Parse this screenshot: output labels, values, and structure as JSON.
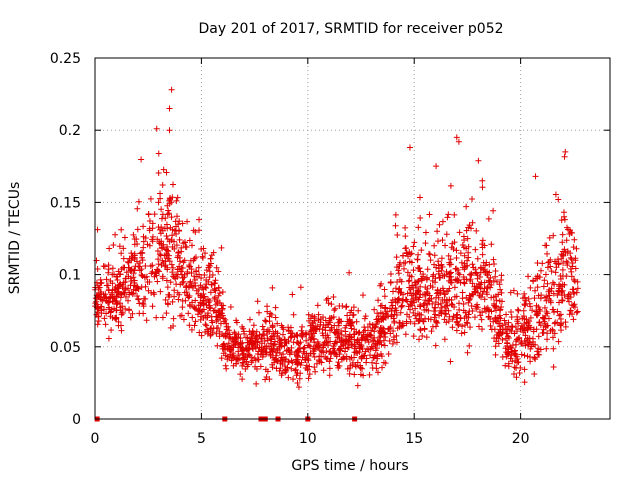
{
  "chart_data": {
    "type": "scatter",
    "title": "Day 201 of 2017, SRMTID for receiver p052",
    "xlabel": "GPS time / hours",
    "ylabel": "SRMTID / TECUs",
    "xlim": [
      0,
      24.2
    ],
    "ylim": [
      0,
      0.25
    ],
    "xticks": [
      0,
      5,
      10,
      15,
      20
    ],
    "xtick_labels": [
      "0",
      "5",
      "10",
      "15",
      "20"
    ],
    "yticks": [
      0,
      0.05,
      0.1,
      0.15,
      0.2,
      0.25
    ],
    "ytick_labels": [
      "0",
      "0.05",
      "0.1",
      "0.15",
      "0.2",
      "0.25"
    ],
    "grid": true,
    "marker": "+",
    "series_color": "#e00000",
    "envelope": [
      {
        "t": 0.0,
        "mean": 0.082,
        "spread": 0.018
      },
      {
        "t": 1.0,
        "mean": 0.085,
        "spread": 0.022
      },
      {
        "t": 2.0,
        "mean": 0.105,
        "spread": 0.032
      },
      {
        "t": 3.0,
        "mean": 0.115,
        "spread": 0.04
      },
      {
        "t": 3.6,
        "mean": 0.12,
        "spread": 0.045
      },
      {
        "t": 4.5,
        "mean": 0.095,
        "spread": 0.028
      },
      {
        "t": 5.5,
        "mean": 0.085,
        "spread": 0.03
      },
      {
        "t": 6.3,
        "mean": 0.048,
        "spread": 0.014
      },
      {
        "t": 7.5,
        "mean": 0.05,
        "spread": 0.016
      },
      {
        "t": 8.5,
        "mean": 0.05,
        "spread": 0.018
      },
      {
        "t": 9.5,
        "mean": 0.045,
        "spread": 0.016
      },
      {
        "t": 10.5,
        "mean": 0.055,
        "spread": 0.02
      },
      {
        "t": 11.5,
        "mean": 0.055,
        "spread": 0.02
      },
      {
        "t": 12.5,
        "mean": 0.05,
        "spread": 0.018
      },
      {
        "t": 13.5,
        "mean": 0.06,
        "spread": 0.02
      },
      {
        "t": 14.5,
        "mean": 0.09,
        "spread": 0.035
      },
      {
        "t": 15.5,
        "mean": 0.085,
        "spread": 0.03
      },
      {
        "t": 16.5,
        "mean": 0.09,
        "spread": 0.035
      },
      {
        "t": 17.2,
        "mean": 0.1,
        "spread": 0.04
      },
      {
        "t": 18.5,
        "mean": 0.09,
        "spread": 0.032
      },
      {
        "t": 19.5,
        "mean": 0.05,
        "spread": 0.018
      },
      {
        "t": 20.5,
        "mean": 0.065,
        "spread": 0.03
      },
      {
        "t": 21.5,
        "mean": 0.085,
        "spread": 0.035
      },
      {
        "t": 22.0,
        "mean": 0.1,
        "spread": 0.04
      },
      {
        "t": 22.7,
        "mean": 0.085,
        "spread": 0.03
      }
    ],
    "peaks": [
      {
        "t": 3.6,
        "value": 0.228
      },
      {
        "t": 3.5,
        "value": 0.215
      },
      {
        "t": 2.9,
        "value": 0.201
      },
      {
        "t": 3.5,
        "value": 0.2
      },
      {
        "t": 14.8,
        "value": 0.188
      },
      {
        "t": 17.0,
        "value": 0.195
      },
      {
        "t": 17.1,
        "value": 0.192
      },
      {
        "t": 22.1,
        "value": 0.185
      },
      {
        "t": 20.7,
        "value": 0.168
      },
      {
        "t": 18.2,
        "value": 0.165
      }
    ],
    "zero_points": [
      0.1,
      6.1,
      7.8,
      8.0,
      8.6,
      10.0,
      12.2
    ],
    "n_points": 2400
  }
}
